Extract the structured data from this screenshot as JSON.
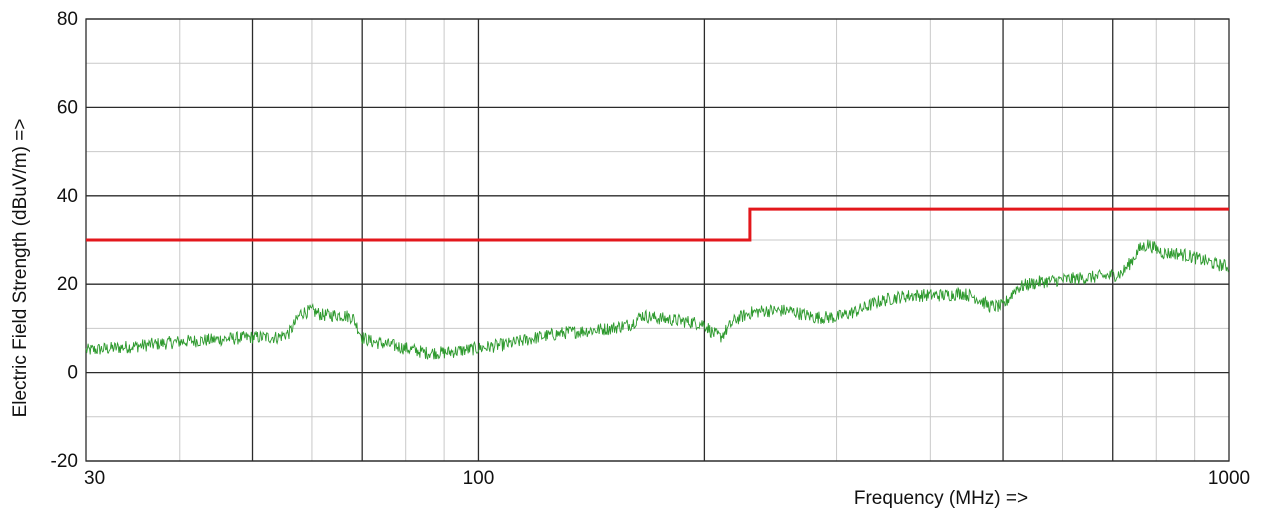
{
  "chart_data": {
    "type": "line",
    "xlabel": "Frequency (MHz) =>",
    "ylabel": "Electric Field Strength (dBuV/m) =>",
    "x_scale": "log",
    "xlim": [
      30,
      1000
    ],
    "ylim": [
      -20,
      80
    ],
    "x_tick_labels": [
      {
        "value": 30,
        "label": "30"
      },
      {
        "value": 100,
        "label": "100"
      },
      {
        "value": 1000,
        "label": "1000"
      }
    ],
    "x_major_grid": [
      50,
      70,
      100,
      200,
      500,
      700
    ],
    "x_minor_grid": [
      40,
      60,
      80,
      90,
      300,
      400,
      600,
      800,
      900
    ],
    "y_tick_labels": [
      {
        "value": 80,
        "label": "80"
      },
      {
        "value": 60,
        "label": "60"
      },
      {
        "value": 40,
        "label": "40"
      },
      {
        "value": 20,
        "label": "20"
      },
      {
        "value": 0,
        "label": "0"
      },
      {
        "value": -20,
        "label": "-20"
      }
    ],
    "y_major_grid": [
      -20,
      0,
      20,
      40,
      60,
      80
    ],
    "y_minor_grid": [
      -10,
      10,
      30,
      50,
      70
    ],
    "grid": true,
    "series": [
      {
        "kind": "limit",
        "color": "#e3171c",
        "x": [
          30,
          230,
          230,
          1000
        ],
        "y": [
          30,
          30,
          37,
          37
        ]
      },
      {
        "kind": "measurement",
        "color": "#2e9a2e",
        "x": [
          30,
          35,
          40,
          45,
          50,
          52,
          54,
          56,
          58,
          60,
          62,
          64,
          66,
          68,
          70,
          72,
          75,
          80,
          85,
          90,
          95,
          100,
          110,
          120,
          130,
          140,
          150,
          160,
          165,
          170,
          180,
          190,
          200,
          205,
          210,
          220,
          230,
          240,
          260,
          280,
          300,
          320,
          340,
          360,
          380,
          400,
          420,
          440,
          460,
          480,
          500,
          520,
          540,
          560,
          600,
          650,
          700,
          720,
          740,
          760,
          780,
          800,
          820,
          850,
          880,
          920,
          960,
          1000
        ],
        "y": [
          5,
          6,
          7,
          7.5,
          8,
          8,
          8,
          9,
          13.5,
          14,
          13,
          13,
          13,
          12.5,
          8,
          7,
          6.5,
          5.5,
          4.5,
          4.5,
          5,
          5.5,
          6.5,
          8,
          9,
          9.5,
          10,
          11,
          13,
          12.5,
          12,
          11.5,
          11,
          9,
          8,
          12,
          13.5,
          14,
          14,
          12.5,
          12.5,
          14,
          16,
          17,
          17.5,
          17.5,
          17.5,
          18,
          17,
          15,
          15,
          19,
          20,
          20.5,
          21,
          21.5,
          22,
          22.5,
          25,
          28,
          29,
          28,
          27,
          27,
          26.5,
          25.5,
          24.5,
          24
        ]
      }
    ]
  }
}
